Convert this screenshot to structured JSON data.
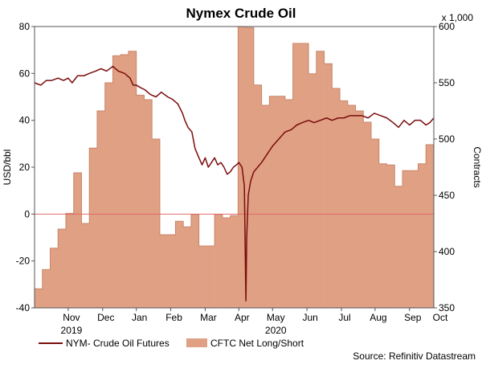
{
  "chart_data": {
    "type": "bar",
    "title": "Nymex Crude Oil",
    "y_left": {
      "label": "USD/bbl",
      "range": [
        -40,
        80
      ],
      "ticks": [
        -40,
        -20,
        0,
        20,
        40,
        60,
        80
      ]
    },
    "y_right": {
      "label": "Contracts",
      "multiplier_label": "x 1,000",
      "range": [
        350,
        600
      ],
      "ticks": [
        350,
        400,
        450,
        500,
        550,
        600
      ]
    },
    "x_axis": {
      "range": [
        0,
        51
      ],
      "months": [
        {
          "label": "Nov",
          "x": 4.3
        },
        {
          "label": "Dec",
          "x": 8.7
        },
        {
          "label": "Jan",
          "x": 13.0
        },
        {
          "label": "Feb",
          "x": 17.4
        },
        {
          "label": "Mar",
          "x": 21.8
        },
        {
          "label": "Apr",
          "x": 26.1
        },
        {
          "label": "May",
          "x": 30.4
        },
        {
          "label": "Jun",
          "x": 34.8
        },
        {
          "label": "Jul",
          "x": 39.2
        },
        {
          "label": "Aug",
          "x": 43.5
        },
        {
          "label": "Sep",
          "x": 47.9
        },
        {
          "label": "Oct",
          "x": 52.2
        }
      ],
      "years": [
        {
          "label": "2019",
          "x": 4.3
        },
        {
          "label": "2020",
          "x": 30.4
        }
      ]
    },
    "zero_line": 0,
    "grid": false,
    "legend_position": "bottom-left",
    "series": [
      {
        "name": "NYM- Crude Oil Futures",
        "type": "line",
        "axis": "left",
        "color": "#7a0c0c",
        "x": [
          0,
          0.8,
          1.5,
          2.2,
          3.0,
          3.7,
          4.3,
          4.8,
          5.5,
          6.3,
          7.0,
          7.8,
          8.5,
          9.2,
          10.0,
          10.7,
          11.5,
          12.2,
          12.6,
          13.0,
          13.5,
          14.1,
          14.8,
          15.5,
          16.2,
          17.0,
          17.6,
          18.3,
          18.9,
          19.2,
          19.6,
          20.1,
          20.5,
          21.0,
          21.4,
          21.8,
          22.2,
          22.6,
          23.0,
          23.4,
          23.8,
          24.2,
          24.6,
          25.0,
          25.4,
          25.8,
          26.1,
          26.5,
          26.8,
          27.0,
          27.1,
          27.3,
          27.6,
          28.0,
          28.5,
          29.0,
          29.6,
          30.4,
          31.2,
          32.0,
          32.8,
          33.5,
          34.2,
          35.0,
          35.7,
          36.5,
          37.3,
          38.0,
          38.8,
          39.5,
          40.3,
          41.0,
          41.8,
          42.6,
          43.4,
          44.2,
          45.0,
          45.8,
          46.5,
          47.2,
          47.9,
          48.6,
          49.3,
          50.0,
          50.5,
          51.0
        ],
        "values": [
          56,
          55,
          57,
          57,
          58,
          57,
          58,
          56,
          59,
          59,
          60,
          61,
          62,
          61,
          63,
          61,
          60,
          58,
          55,
          55,
          54,
          53,
          51,
          50,
          52,
          50,
          49,
          47,
          43,
          40,
          37,
          35,
          28,
          24,
          21,
          24,
          20,
          22,
          24,
          21,
          22,
          20,
          17,
          18,
          20,
          21,
          22,
          20,
          12,
          -37,
          -10,
          8,
          14,
          18,
          20,
          22,
          25,
          29,
          32,
          35,
          36,
          38,
          39,
          40,
          39,
          40,
          41,
          40,
          41,
          41,
          42,
          42,
          42,
          41,
          43,
          42,
          41,
          39,
          37,
          40,
          38,
          40,
          40,
          38,
          39,
          41
        ]
      },
      {
        "name": "CFTC Net Long/Short",
        "type": "bar",
        "axis": "right",
        "color": "#e0a084",
        "edge_color": "#c8866a",
        "x_start": [
          0,
          1,
          2,
          3,
          4,
          5,
          6,
          7,
          8,
          9,
          10,
          11,
          12,
          13,
          14,
          15,
          16,
          17,
          18,
          19,
          20,
          21,
          22,
          23,
          24,
          25,
          26,
          27,
          28,
          29,
          30,
          31,
          32,
          33,
          34,
          35,
          36,
          37,
          38,
          39,
          40,
          41,
          42,
          43,
          44,
          45,
          46,
          47,
          48,
          49,
          50
        ],
        "values": [
          367,
          384,
          403,
          420,
          434,
          470,
          425,
          492,
          525,
          550,
          574,
          575,
          578,
          539,
          535,
          500,
          415,
          415,
          427,
          422,
          433,
          405,
          405,
          433,
          430,
          432,
          600,
          599,
          548,
          530,
          538,
          538,
          535,
          585,
          585,
          558,
          578,
          567,
          545,
          534,
          530,
          525,
          515,
          500,
          478,
          477,
          458,
          472,
          472,
          478,
          495
        ]
      }
    ],
    "source": "Source: Refinitiv Datastream"
  }
}
